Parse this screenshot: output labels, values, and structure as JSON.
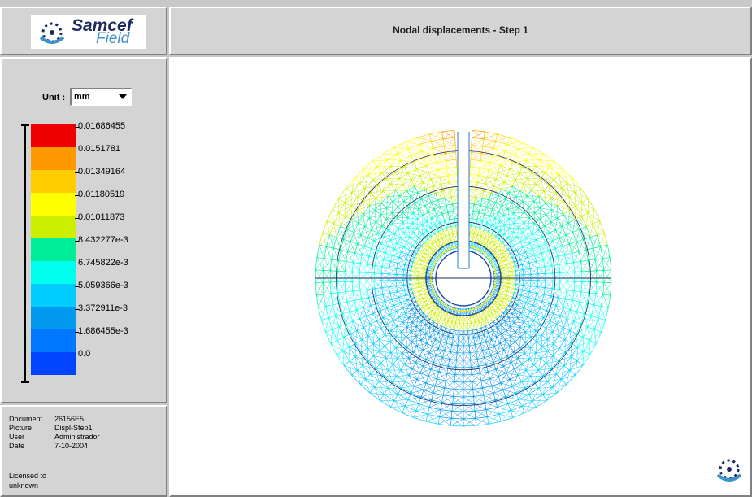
{
  "logo": {
    "line1": "Samcef",
    "line2": "Field",
    "icon": "samcef-logo-icon"
  },
  "header": {
    "title": "Nodal displacements - Step 1"
  },
  "legend": {
    "unit_label": "Unit :",
    "unit_value": "mm",
    "colors": [
      "#ee0000",
      "#ff9900",
      "#ffcc00",
      "#ffff00",
      "#ccee00",
      "#00ee99",
      "#00ffee",
      "#00ccff",
      "#0099ee",
      "#0077ff",
      "#0044ff"
    ],
    "labels": [
      "0.01686455",
      "0.0151781",
      "0.01349164",
      "0.01180519",
      "0.01011873",
      "8.432277e-3",
      "6.745822e-3",
      "5.059366e-3",
      "3.372911e-3",
      "1.686455e-3",
      "0.0"
    ]
  },
  "info": {
    "rows": [
      {
        "key": "Document",
        "value": "26156E5"
      },
      {
        "key": "Picture",
        "value": "Displ-Step1"
      },
      {
        "key": "User",
        "value": "Administrador"
      },
      {
        "key": "Date",
        "value": "7-10-2004"
      }
    ],
    "license_line1": "Licensed to",
    "license_line2": "unknown"
  },
  "viewport": {
    "background": "#ffffff",
    "corner_icon": "samcef-logo-icon"
  }
}
